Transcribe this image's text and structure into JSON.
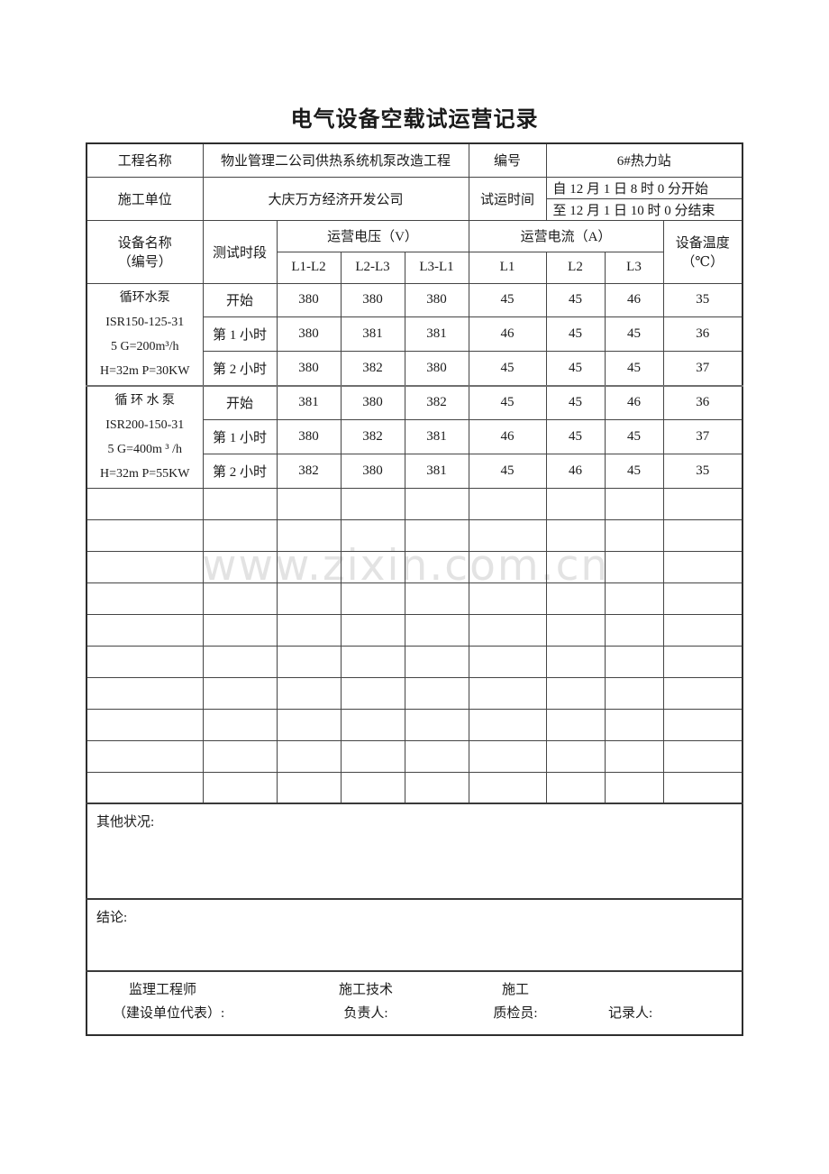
{
  "title": "电气设备空载试运营记录",
  "watermark": "www.zixin.com.cn",
  "info": {
    "project_label": "工程名称",
    "project_value": "物业管理二公司供热系统机泵改造工程",
    "number_label": "编号",
    "number_value": "6#热力站",
    "builder_label": "施工单位",
    "builder_value": "大庆万方经济开发公司",
    "time_label": "试运时间",
    "time_start": "自 12 月 1 日  8 时 0 分开始",
    "time_end": "至 12 月 1 日 10 时 0 分结束"
  },
  "table": {
    "headers": {
      "device_line1": "设备名称",
      "device_line2": "（编号）",
      "period": "测试时段",
      "voltage_group": "运营电压（V）",
      "current_group": "运营电流（A）",
      "temp_line1": "设备温度",
      "temp_line2": "（℃）",
      "voltage_cols": [
        "L1-L2",
        "L2-L3",
        "L3-L1"
      ],
      "current_cols": [
        "L1",
        "L2",
        "L3"
      ]
    },
    "groups": [
      {
        "device_lines": [
          "循环水泵",
          "ISR150-125-31",
          "5  G=200m³/h",
          "H=32m P=30KW"
        ],
        "rows": [
          {
            "period": "开始",
            "values": [
              "380",
              "380",
              "380",
              "45",
              "45",
              "46",
              "35"
            ]
          },
          {
            "period": "第 1 小时",
            "values": [
              "380",
              "381",
              "381",
              "46",
              "45",
              "45",
              "36"
            ]
          },
          {
            "period": "第 2 小时",
            "values": [
              "380",
              "382",
              "380",
              "45",
              "45",
              "45",
              "37"
            ]
          }
        ]
      },
      {
        "device_lines": [
          "循 环 水 泵",
          "ISR200-150-31",
          "5  G=400m ³ /h",
          "H=32m P=55KW"
        ],
        "rows": [
          {
            "period": "开始",
            "values": [
              "381",
              "380",
              "382",
              "45",
              "45",
              "46",
              "36"
            ]
          },
          {
            "period": "第 1 小时",
            "values": [
              "380",
              "382",
              "381",
              "46",
              "45",
              "45",
              "37"
            ]
          },
          {
            "period": "第 2 小时",
            "values": [
              "382",
              "380",
              "381",
              "45",
              "46",
              "45",
              "35"
            ]
          }
        ]
      }
    ],
    "empty_row_count": 10
  },
  "sections": {
    "other_label": "其他状况:",
    "conclusion_label": "结论:"
  },
  "footer": {
    "supervisor_line1": "监理工程师",
    "supervisor_line2": "（建设单位代表）:",
    "tech_line1": "施工技术",
    "tech_line2": "负责人:",
    "qc_line1": "施工",
    "qc_line2": "质检员:",
    "recorder": "记录人:"
  }
}
